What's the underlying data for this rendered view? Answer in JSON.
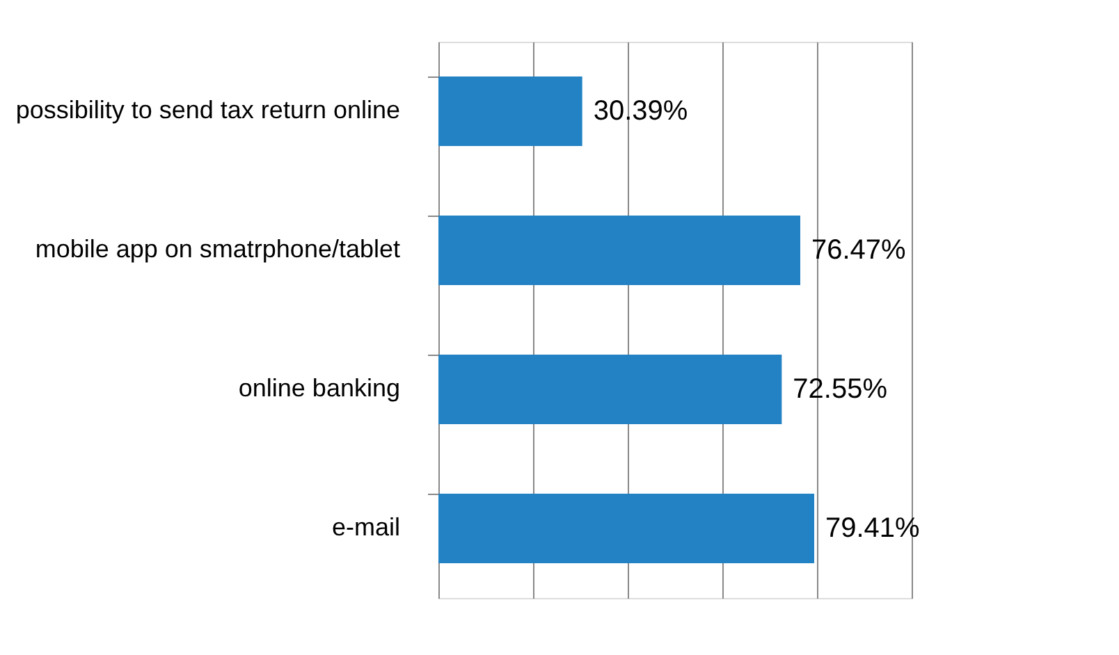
{
  "chart_data": {
    "type": "bar",
    "orientation": "horizontal",
    "categories": [
      "possibility to send tax return online",
      "mobile app on smatrphone/tablet",
      "online banking",
      "e-mail"
    ],
    "values": [
      30.39,
      76.47,
      72.55,
      79.41
    ],
    "value_labels": [
      "30.39%",
      "76.47%",
      "72.55%",
      "79.41%"
    ],
    "color": "#2382c4",
    "xlim": [
      0,
      100
    ],
    "xticks": [
      {
        "value": 0,
        "label": null
      },
      {
        "value": 20,
        "label": null
      },
      {
        "value": 40,
        "label": null
      },
      {
        "value": 60,
        "label": null
      },
      {
        "value": 80,
        "label": null
      },
      {
        "value": 100,
        "label": null
      }
    ],
    "grid": "x",
    "tick_labels": "y"
  }
}
